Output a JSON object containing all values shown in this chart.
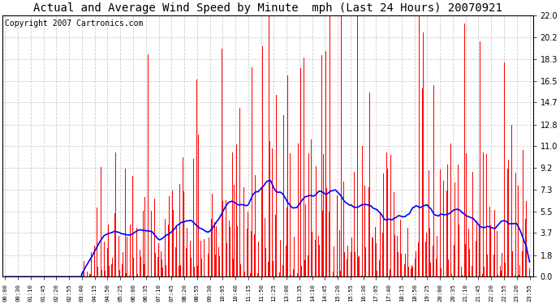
{
  "title": "Actual and Average Wind Speed by Minute  mph (Last 24 Hours) 20070921",
  "copyright_text": "Copyright 2007 Cartronics.com",
  "yticks": [
    0.0,
    1.8,
    3.7,
    5.5,
    7.3,
    9.2,
    11.0,
    12.8,
    14.7,
    16.5,
    18.3,
    20.2,
    22.0
  ],
  "xtick_labels": [
    "00:00",
    "00:30",
    "01:10",
    "01:45",
    "02:20",
    "02:55",
    "03:40",
    "04:15",
    "04:50",
    "05:25",
    "06:00",
    "06:35",
    "07:10",
    "07:45",
    "08:20",
    "08:55",
    "09:30",
    "10:05",
    "10:40",
    "11:15",
    "11:50",
    "12:25",
    "13:00",
    "13:35",
    "14:10",
    "14:45",
    "15:20",
    "15:55",
    "16:30",
    "17:05",
    "17:40",
    "18:15",
    "18:50",
    "19:25",
    "20:00",
    "20:35",
    "21:10",
    "21:45",
    "22:20",
    "22:55",
    "23:20",
    "23:55"
  ],
  "ymax": 22.0,
  "ymin": 0.0,
  "bar_color": "#ff0000",
  "line_color": "#0000ff",
  "background_color": "#ffffff",
  "grid_color": "#c8c8c8",
  "title_fontsize": 10,
  "copyright_fontsize": 7,
  "fig_width": 6.9,
  "fig_height": 3.75,
  "dpi": 100
}
